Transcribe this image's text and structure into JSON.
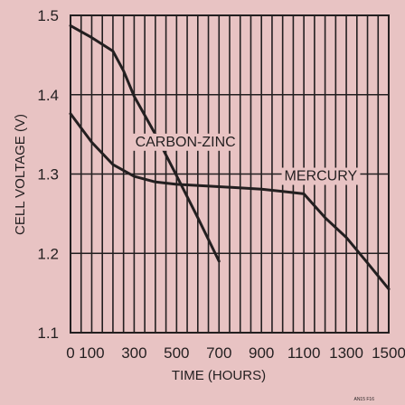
{
  "chart_data": {
    "type": "line",
    "xlabel": "TIME (HOURS)",
    "ylabel": "CELL VOLTAGE (V)",
    "xlim": [
      0,
      1500
    ],
    "ylim": [
      1.1,
      1.5
    ],
    "x_ticks": [
      0,
      100,
      300,
      500,
      700,
      900,
      1100,
      1300,
      1500
    ],
    "y_ticks": [
      1.1,
      1.2,
      1.3,
      1.4,
      1.5
    ],
    "x_tick_labels": [
      "0",
      "100",
      "300",
      "500",
      "700",
      "900",
      "1100",
      "1300",
      "1500"
    ],
    "y_tick_labels": [
      "1.1",
      "1.2",
      "1.3",
      "1.4",
      "1.5"
    ],
    "grid": true,
    "series": [
      {
        "name": "CARBON-ZINC",
        "points": [
          [
            0,
            1.487
          ],
          [
            100,
            1.472
          ],
          [
            200,
            1.455
          ],
          [
            250,
            1.43
          ],
          [
            300,
            1.398
          ],
          [
            400,
            1.35
          ],
          [
            500,
            1.298
          ],
          [
            600,
            1.245
          ],
          [
            700,
            1.19
          ]
        ]
      },
      {
        "name": "MERCURY",
        "points": [
          [
            0,
            1.376
          ],
          [
            100,
            1.34
          ],
          [
            200,
            1.312
          ],
          [
            300,
            1.297
          ],
          [
            400,
            1.29
          ],
          [
            500,
            1.287
          ],
          [
            700,
            1.284
          ],
          [
            900,
            1.281
          ],
          [
            1000,
            1.278
          ],
          [
            1100,
            1.275
          ],
          [
            1150,
            1.26
          ],
          [
            1200,
            1.245
          ],
          [
            1300,
            1.22
          ],
          [
            1400,
            1.188
          ],
          [
            1500,
            1.155
          ]
        ]
      }
    ],
    "footnote": "AN15 F16"
  }
}
